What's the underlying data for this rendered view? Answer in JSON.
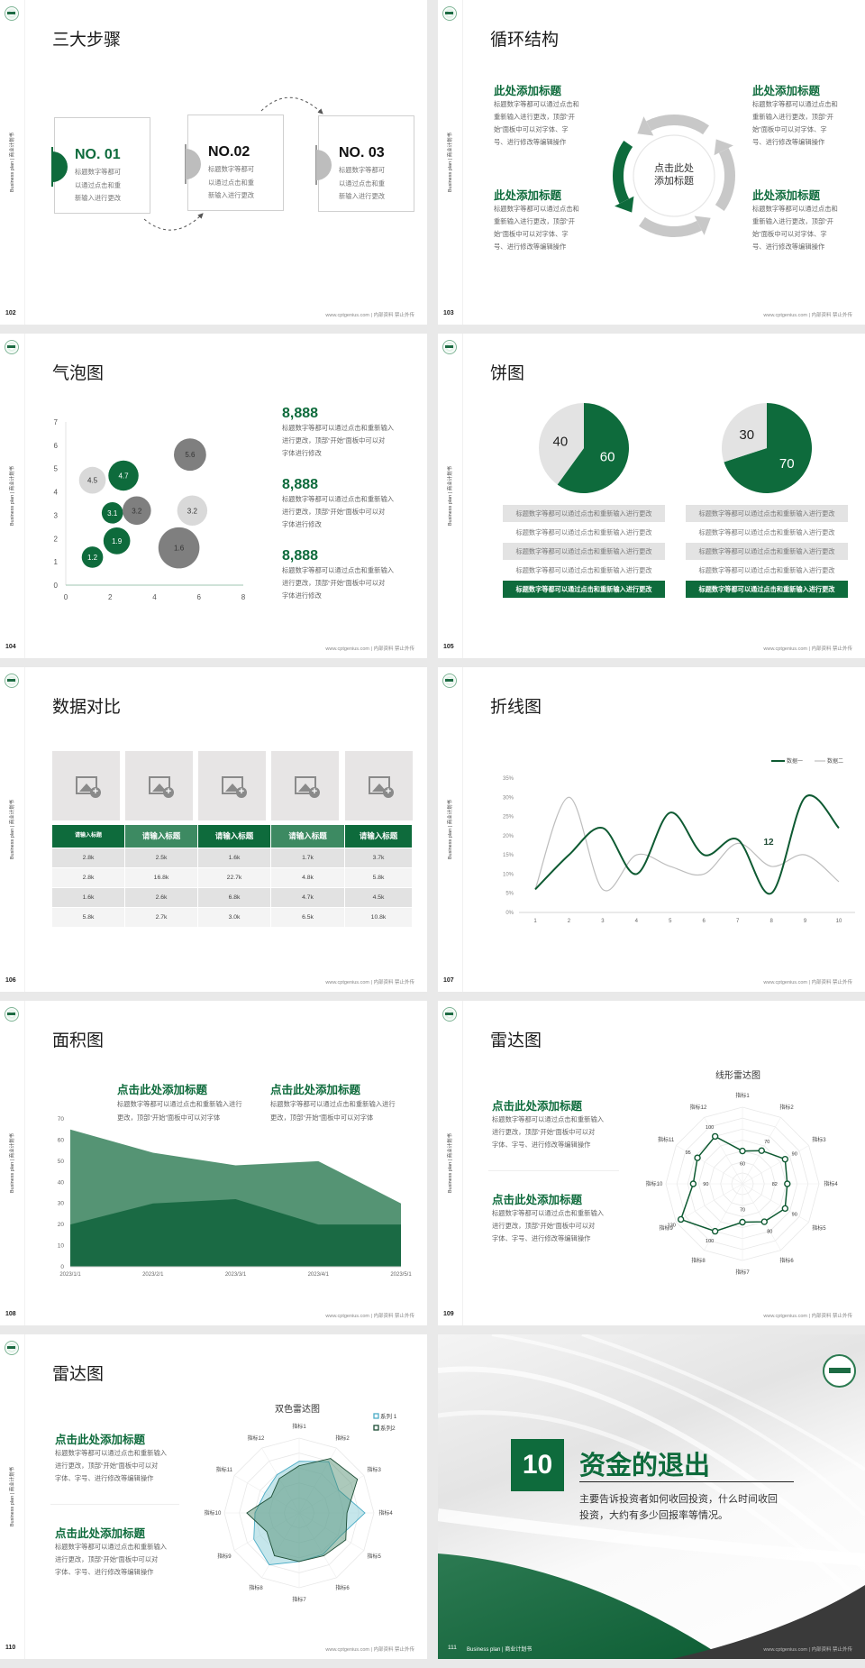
{
  "common": {
    "sidebar": "Business plan | 商业计划书",
    "footer": "www.cptgenius.com | 内部资料 禁止外传"
  },
  "colors": {
    "green": "#0e6b3c",
    "mid_green": "#3d8a62",
    "gray": "#bfbfbf",
    "light_gray": "#e3e3e3",
    "dark_gray": "#7f7f7f"
  },
  "slides": {
    "s102": {
      "page": "102",
      "title": "三大步骤",
      "steps": [
        {
          "label": "NO. 01",
          "lines": [
            "标题数字等都可",
            "以通过点击和重",
            "新输入进行更改"
          ]
        },
        {
          "label": "NO.02",
          "lines": [
            "标题数字等都可",
            "以通过点击和重",
            "新输入进行更改"
          ]
        },
        {
          "label": "NO. 03",
          "lines": [
            "标题数字等都可",
            "以通过点击和重",
            "新输入进行更改"
          ]
        }
      ]
    },
    "s103": {
      "page": "103",
      "title": "循环结构",
      "center": [
        "点击此处",
        "添加标题"
      ],
      "blocks": [
        {
          "title": "此处添加标题",
          "lines": [
            "标题数字等都可以通过点击和",
            "重新输入进行更改，顶部“开",
            "始”面板中可以对字体、字",
            "号、进行修改等编辑操作"
          ]
        },
        {
          "title": "此处添加标题",
          "lines": [
            "标题数字等都可以通过点击和",
            "重新输入进行更改，顶部“开",
            "始”面板中可以对字体、字",
            "号、进行修改等编辑操作"
          ]
        },
        {
          "title": "此处添加标题",
          "lines": [
            "标题数字等都可以通过点击和",
            "重新输入进行更改，顶部“开",
            "始”面板中可以对字体、字",
            "号、进行修改等编辑操作"
          ]
        },
        {
          "title": "此处添加标题",
          "lines": [
            "标题数字等都可以通过点击和",
            "重新输入进行更改，顶部“开",
            "始”面板中可以对字体、字",
            "号、进行修改等编辑操作"
          ]
        }
      ]
    },
    "s104": {
      "page": "104",
      "title": "气泡图",
      "stats": [
        {
          "value": "8,888",
          "lines": [
            "标题数字等都可以通过点击和重新输入",
            "进行更改，顶部“开始”面板中可以对",
            "字体进行修改"
          ]
        },
        {
          "value": "8,888",
          "lines": [
            "标题数字等都可以通过点击和重新输入",
            "进行更改，顶部“开始”面板中可以对",
            "字体进行修改"
          ]
        },
        {
          "value": "8,888",
          "lines": [
            "标题数字等都可以通过点击和重新输入",
            "进行更改，顶部“开始”面板中可以对",
            "字体进行修改"
          ]
        }
      ]
    },
    "s105": {
      "page": "105",
      "title": "饼图",
      "rows_left": [
        "标题数字等都可以通过点击和重新输入进行更改",
        "标题数字等都可以通过点击和重新输入进行更改",
        "标题数字等都可以通过点击和重新输入进行更改",
        "标题数字等都可以通过点击和重新输入进行更改",
        "标题数字等都可以通过点击和重新输入进行更改"
      ],
      "rows_right": [
        "标题数字等都可以通过点击和重新输入进行更改",
        "标题数字等都可以通过点击和重新输入进行更改",
        "标题数字等都可以通过点击和重新输入进行更改",
        "标题数字等都可以通过点击和重新输入进行更改",
        "标题数字等都可以通过点击和重新输入进行更改"
      ]
    },
    "s106": {
      "page": "106",
      "title": "数据对比",
      "headers": [
        "请输入标题",
        "请输入标题",
        "请输入标题",
        "请输入标题",
        "请输入标题"
      ],
      "rows": [
        [
          "2.8k",
          "2.5k",
          "1.6k",
          "1.7k",
          "3.7k"
        ],
        [
          "2.8k",
          "16.8k",
          "22.7k",
          "4.8k",
          "5.8k"
        ],
        [
          "1.6k",
          "2.6k",
          "6.8k",
          "4.7k",
          "4.5k"
        ],
        [
          "5.8k",
          "2.7k",
          "3.0k",
          "6.5k",
          "10.8k"
        ]
      ]
    },
    "s107": {
      "page": "107",
      "title": "折线图"
    },
    "s108": {
      "page": "108",
      "title": "面积图",
      "blocks": [
        {
          "title": "点击此处添加标题",
          "lines": [
            "标题数字等都可以通过点击和重新输入进行",
            "更改，顶部“开始”面板中可以对字体"
          ]
        },
        {
          "title": "点击此处添加标题",
          "lines": [
            "标题数字等都可以通过点击和重新输入进行",
            "更改，顶部“开始”面板中可以对字体"
          ]
        }
      ]
    },
    "s109": {
      "page": "109",
      "title": "雷达图",
      "blocks": [
        {
          "title": "点击此处添加标题",
          "lines": [
            "标题数字等都可以通过点击和重新输入",
            "进行更改，顶部“开始”面板中可以对",
            "字体、字号、进行修改等编辑操作"
          ]
        },
        {
          "title": "点击此处添加标题",
          "lines": [
            "标题数字等都可以通过点击和重新输入",
            "进行更改，顶部“开始”面板中可以对",
            "字体、字号、进行修改等编辑操作"
          ]
        }
      ]
    },
    "s110": {
      "page": "110",
      "title": "雷达图",
      "blocks": [
        {
          "title": "点击此处添加标题",
          "lines": [
            "标题数字等都可以通过点击和重新输入",
            "进行更改，顶部“开始”面板中可以对",
            "字体、字号、进行修改等编辑操作"
          ]
        },
        {
          "title": "点击此处添加标题",
          "lines": [
            "标题数字等都可以通过点击和重新输入",
            "进行更改，顶部“开始”面板中可以对",
            "字体、字号、进行修改等编辑操作"
          ]
        }
      ]
    },
    "s111": {
      "page": "111",
      "number": "10",
      "title": "资金的退出",
      "lines": [
        "主要告诉投资者如何收回投资，什么时间收回",
        "投资，大约有多少回报率等情况。"
      ],
      "footer_left": "Business plan | 商业计划书"
    }
  },
  "chart_data": [
    {
      "type": "scatter",
      "subtype": "bubble",
      "xlim": [
        0,
        8
      ],
      "ylim": [
        0,
        7
      ],
      "xticks": [
        "0",
        "2",
        "4",
        "6",
        "8"
      ],
      "yticks": [
        "0",
        "1",
        "2",
        "3",
        "4",
        "5",
        "6",
        "7"
      ],
      "points": [
        {
          "x": 1.2,
          "y": 4.5,
          "size": 2.2,
          "label": "4.5",
          "color": "#d9d9d9"
        },
        {
          "x": 2.6,
          "y": 4.7,
          "size": 2.8,
          "label": "4.7",
          "color": "#0e6b3c"
        },
        {
          "x": 5.6,
          "y": 5.6,
          "size": 3.2,
          "label": "5.6",
          "color": "#7f7f7f"
        },
        {
          "x": 2.1,
          "y": 3.1,
          "size": 1.4,
          "label": "3.1",
          "color": "#0e6b3c"
        },
        {
          "x": 3.2,
          "y": 3.2,
          "size": 2.5,
          "label": "3.2",
          "color": "#7f7f7f"
        },
        {
          "x": 5.7,
          "y": 3.2,
          "size": 2.8,
          "label": "3.2",
          "color": "#d9d9d9"
        },
        {
          "x": 2.3,
          "y": 1.9,
          "size": 2.2,
          "label": "1.9",
          "color": "#0e6b3c"
        },
        {
          "x": 5.1,
          "y": 1.6,
          "size": 5.2,
          "label": "1.6",
          "color": "#7f7f7f"
        },
        {
          "x": 1.2,
          "y": 1.2,
          "size": 1.4,
          "label": "1.2",
          "color": "#0e6b3c"
        }
      ]
    },
    {
      "type": "pie",
      "values": [
        60,
        40
      ],
      "labels": [
        "60",
        "40"
      ],
      "colors": [
        "#0e6b3c",
        "#e3e3e3"
      ]
    },
    {
      "type": "pie",
      "values": [
        70,
        30
      ],
      "labels": [
        "70",
        "30"
      ],
      "colors": [
        "#0e6b3c",
        "#e3e3e3"
      ]
    },
    {
      "type": "line",
      "x": [
        1,
        2,
        3,
        4,
        5,
        6,
        7,
        8,
        9,
        10
      ],
      "ylim": [
        0,
        35
      ],
      "yticks": [
        "0%",
        "5%",
        "10%",
        "15%",
        "20%",
        "25%",
        "30%",
        "35%"
      ],
      "legend": "top-right",
      "smooth": true,
      "series": [
        {
          "name": "数据一",
          "values": [
            6,
            15,
            22,
            10,
            26,
            15,
            19,
            5,
            30,
            22
          ],
          "color": "#0e5a32"
        },
        {
          "name": "数据二",
          "values": [
            6,
            30,
            6,
            15,
            12,
            10,
            18,
            12,
            15,
            8
          ],
          "color": "#bdbdbd"
        }
      ],
      "annotations": [
        "12"
      ]
    },
    {
      "type": "area",
      "categories": [
        "2023/1/1",
        "2023/2/1",
        "2023/3/1",
        "2023/4/1",
        "2023/5/1"
      ],
      "ylim": [
        0,
        70
      ],
      "yticks": [
        "0",
        "10",
        "20",
        "30",
        "40",
        "50",
        "60",
        "70"
      ],
      "series": [
        {
          "values": [
            65,
            54,
            48,
            50,
            30
          ],
          "color": "#559474"
        },
        {
          "values": [
            20,
            30,
            32,
            20,
            20
          ],
          "color": "#1a6a44"
        }
      ]
    },
    {
      "type": "radar",
      "title": "线形雷达图",
      "categories": [
        "指标1",
        "指标2",
        "指标3",
        "指标4",
        "指标5",
        "指标6",
        "指标7",
        "指标8",
        "指标9",
        "指标10",
        "指标11",
        "指标12"
      ],
      "rmax": 140,
      "series": [
        {
          "values": [
            60,
            70,
            90,
            82,
            90,
            80,
            70,
            100,
            130,
            90,
            95,
            100
          ],
          "color": "#0e5a32"
        }
      ]
    },
    {
      "type": "radar",
      "title": "双色雷达图",
      "categories": [
        "指标1",
        "指标2",
        "指标3",
        "指标4",
        "指标5",
        "指标6",
        "指标7",
        "指标8",
        "指标9",
        "指标10",
        "指标11",
        "指标12"
      ],
      "rmax": 100,
      "legend": "top-right",
      "series": [
        {
          "name": "系列 1",
          "values": [
            69,
            79,
            61,
            88,
            63,
            64,
            65,
            80,
            70,
            59,
            53,
            59
          ],
          "color": "#4bacc6",
          "fill": "rgba(140,205,215,0.5)"
        },
        {
          "name": "系列2",
          "values": [
            63,
            84,
            90,
            64,
            72,
            66,
            65,
            66,
            50,
            70,
            43,
            53
          ],
          "color": "#1d4d35",
          "fill": "rgba(70,135,105,0.45)"
        }
      ]
    }
  ]
}
